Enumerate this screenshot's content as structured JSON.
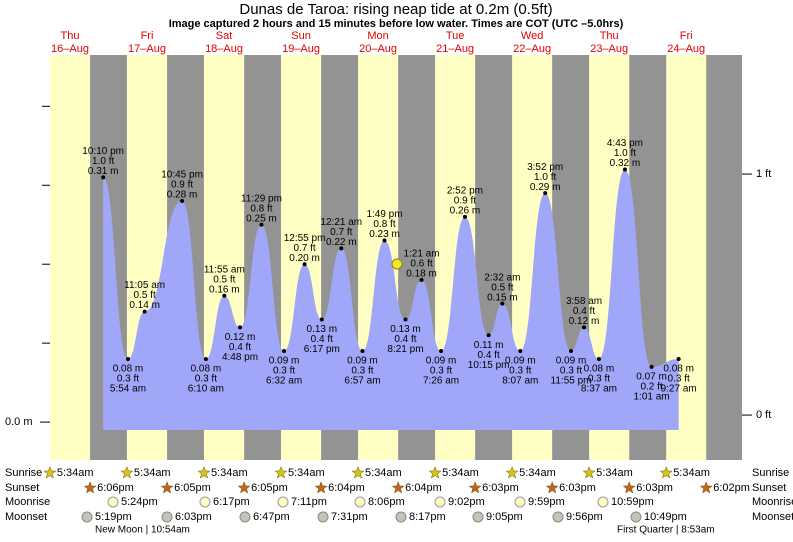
{
  "chart_data": {
    "type": "area",
    "title": "Dunas de Taroa: rising  neap tide at 0.2m (0.5ft)",
    "subtitle": "Image captured 2 hours and 15 minutes before low water. Times are COT (UTC –5.0hrs)",
    "days": [
      "Thu",
      "Fri",
      "Sat",
      "Sun",
      "Mon",
      "Tue",
      "Wed",
      "Thu",
      "Fri"
    ],
    "dates": [
      "16–Aug",
      "17–Aug",
      "18–Aug",
      "19–Aug",
      "20–Aug",
      "21–Aug",
      "22–Aug",
      "23–Aug",
      "24–Aug"
    ],
    "ylim": [
      -0.01,
      0.465
    ],
    "yticks": [
      {
        "value": 0,
        "label": "0.0 m"
      }
    ],
    "yminorticks": [
      0.1,
      0.2,
      0.3,
      0.4
    ],
    "y2lim": [
      -0.062,
      1.494
    ],
    "y2ticks": [
      {
        "value": 0,
        "label": "0 ft"
      },
      {
        "value": 1,
        "label": "1 ft"
      }
    ],
    "x": [
      "10:10 pm",
      "5:54 am",
      "11:05 am",
      "10:45 pm",
      "6:10 am",
      "11:55 am",
      "4:48 pm",
      "11:29 pm",
      "6:32 am",
      "12:55 pm",
      "6:17 pm",
      "12:21 am",
      "6:57 am",
      "1:49 pm",
      "8:21 pm",
      "1:21 am",
      "7:26 am",
      "2:52 pm",
      "10:15 pm",
      "2:32 am",
      "8:07 am",
      "3:52 pm",
      "11:55 pm",
      "3:58 am",
      "8:37 am",
      "4:43 pm",
      "1:01 am",
      "9:27 am"
    ],
    "values": [
      0.31,
      0.08,
      0.14,
      0.28,
      0.08,
      0.16,
      0.12,
      0.25,
      0.09,
      0.2,
      0.13,
      0.22,
      0.09,
      0.23,
      0.13,
      0.18,
      0.09,
      0.26,
      0.11,
      0.15,
      0.09,
      0.29,
      0.09,
      0.12,
      0.08,
      0.32,
      0.07,
      0.08
    ],
    "value_labels": [
      "0.31 m",
      "0.08 m",
      "0.14 m",
      "0.28 m",
      "0.08 m",
      "0.16 m",
      "0.12 m",
      "0.25 m",
      "0.09 m",
      "0.20 m",
      "0.13 m",
      "0.22 m",
      "0.09 m",
      "0.23 m",
      "0.13 m",
      "0.18 m",
      "0.09 m",
      "0.26 m",
      "0.11 m",
      "0.15 m",
      "0.09 m",
      "0.29 m",
      "0.09 m",
      "0.12 m",
      "0.08 m",
      "0.32 m",
      "0.07 m",
      "0.08 m"
    ],
    "ft_labels": [
      "1.0 ft",
      "0.3 ft",
      "0.5 ft",
      "0.9 ft",
      "0.3 ft",
      "0.5 ft",
      "0.4 ft",
      "0.8 ft",
      "0.3 ft",
      "0.7 ft",
      "0.4 ft",
      "0.7 ft",
      "0.3 ft",
      "0.8 ft",
      "0.4 ft",
      "0.6 ft",
      "0.3 ft",
      "0.9 ft",
      "0.4 ft",
      "0.5 ft",
      "0.3 ft",
      "1.0 ft",
      "0.3 ft",
      "0.4 ft",
      "0.3 ft",
      "1.0 ft",
      "0.2 ft",
      "0.3 ft"
    ],
    "color": "#a1a7f8",
    "day_color": "#ffffc4",
    "night_color": "#939393",
    "sunrise_label": "Sunrise",
    "sunset_label": "Sunset",
    "moonrise_label": "Moonrise",
    "moonset_label": "Moonset",
    "sunrise": [
      "5:34am",
      "5:34am",
      "5:34am",
      "5:34am",
      "5:34am",
      "5:34am",
      "5:34am",
      "5:34am",
      "5:34am"
    ],
    "sunset": [
      "6:06pm",
      "6:05pm",
      "6:05pm",
      "6:04pm",
      "6:04pm",
      "6:03pm",
      "6:03pm",
      "6:03pm",
      "6:02pm"
    ],
    "moonrise": [
      "5:24pm",
      "6:17pm",
      "7:11pm",
      "8:06pm",
      "9:02pm",
      "9:59pm",
      "10:59pm"
    ],
    "moonset": [
      "5:19pm",
      "6:03pm",
      "6:47pm",
      "7:31pm",
      "8:17pm",
      "9:05pm",
      "9:56pm",
      "10:49pm"
    ],
    "moon_phases": [
      "New Moon | 10:54am",
      "First Quarter | 8:53am"
    ]
  }
}
